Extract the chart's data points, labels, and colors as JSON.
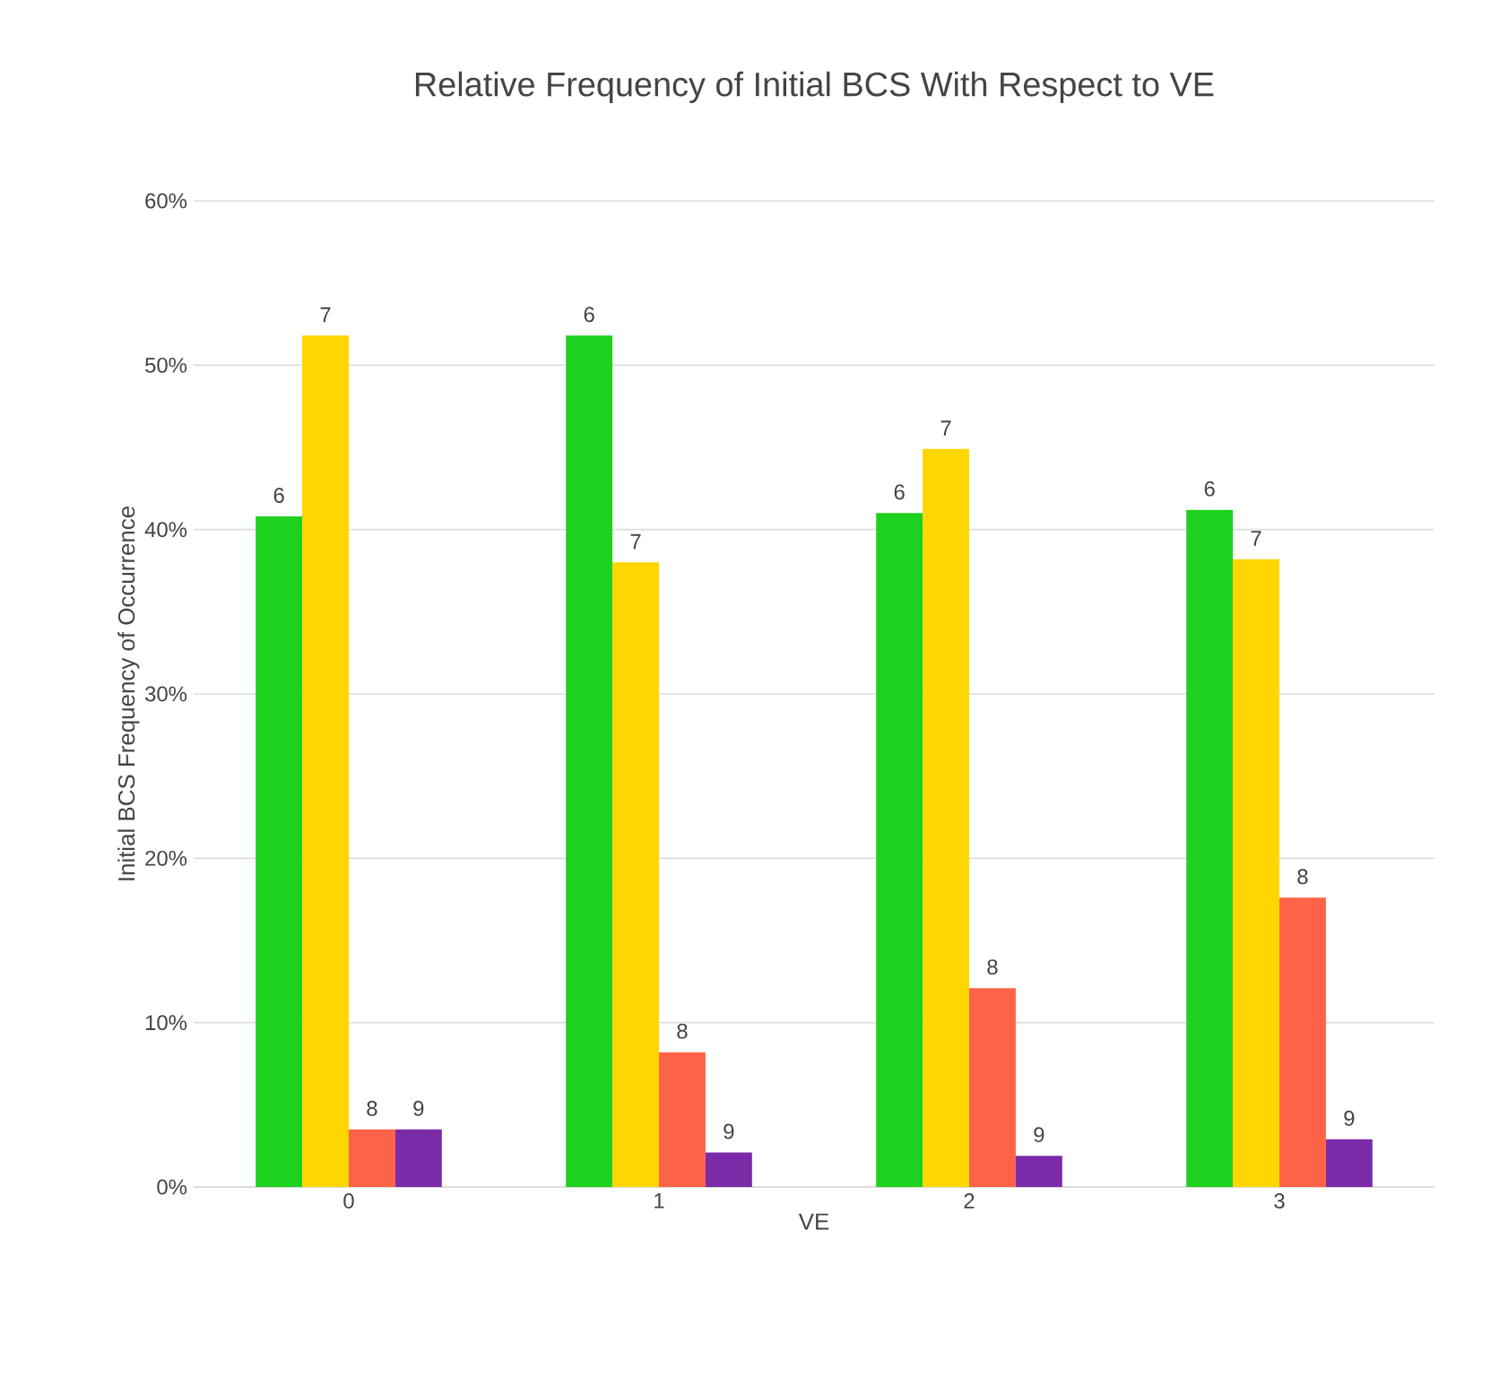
{
  "chart_data": {
    "type": "bar",
    "title": "Relative Frequency of Initial BCS With Respect to VE",
    "xlabel": "VE",
    "ylabel": "Initial BCS Frequency of Occurrence",
    "categories": [
      "0",
      "1",
      "2",
      "3"
    ],
    "series": [
      {
        "name": "6",
        "color": "#1fd11f",
        "values": [
          40.8,
          51.8,
          41.0,
          41.2
        ]
      },
      {
        "name": "7",
        "color": "#ffd600",
        "values": [
          51.8,
          38.0,
          44.9,
          38.2
        ]
      },
      {
        "name": "8",
        "color": "#ff6347",
        "values": [
          3.5,
          8.2,
          12.1,
          17.6
        ]
      },
      {
        "name": "9",
        "color": "#7b2aa8",
        "values": [
          3.5,
          2.1,
          1.9,
          2.9
        ]
      }
    ],
    "ylim": [
      0,
      60
    ],
    "yticks": [
      {
        "value": 0,
        "label": "0%"
      },
      {
        "value": 10,
        "label": "10%"
      },
      {
        "value": 20,
        "label": "20%"
      },
      {
        "value": 30,
        "label": "30%"
      },
      {
        "value": 40,
        "label": "40%"
      },
      {
        "value": 50,
        "label": "50%"
      },
      {
        "value": 60,
        "label": "60%"
      }
    ],
    "grid": "y"
  }
}
